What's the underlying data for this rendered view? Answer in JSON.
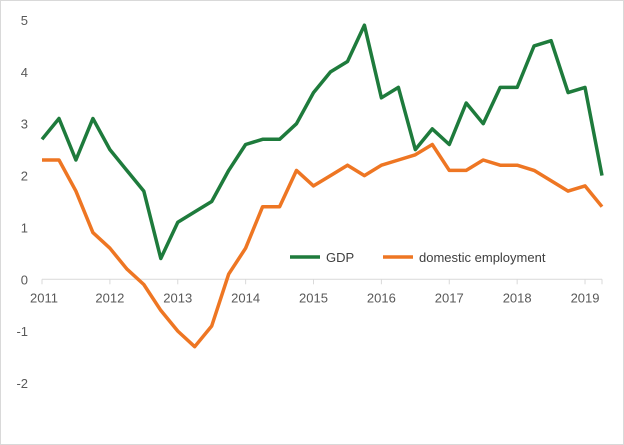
{
  "chart_data": {
    "type": "line",
    "title": "",
    "xlabel": "",
    "ylabel": "",
    "ylim": [
      -2,
      5
    ],
    "xlim": [
      2011.0,
      2019.25
    ],
    "grid": false,
    "legend_position": "center-right",
    "y_ticks": [
      "5",
      "4",
      "3",
      "2",
      "1",
      "0",
      "-1",
      "-2"
    ],
    "x_ticks": [
      "2011",
      "2012",
      "2013",
      "2014",
      "2015",
      "2016",
      "2017",
      "2018",
      "2019"
    ],
    "x": [
      2011.0,
      2011.25,
      2011.5,
      2011.75,
      2012.0,
      2012.25,
      2012.5,
      2012.75,
      2013.0,
      2013.25,
      2013.5,
      2013.75,
      2014.0,
      2014.25,
      2014.5,
      2014.75,
      2015.0,
      2015.25,
      2015.5,
      2015.75,
      2016.0,
      2016.25,
      2016.5,
      2016.75,
      2017.0,
      2017.25,
      2017.5,
      2017.75,
      2018.0,
      2018.25,
      2018.5,
      2018.75,
      2019.0,
      2019.25
    ],
    "series": [
      {
        "name": "GDP",
        "color": "#1e7b3c",
        "values": [
          2.7,
          3.1,
          2.3,
          3.1,
          2.5,
          2.1,
          1.7,
          0.4,
          1.1,
          1.3,
          1.5,
          2.1,
          2.6,
          2.7,
          2.7,
          3.0,
          3.6,
          4.0,
          4.2,
          4.9,
          3.5,
          3.7,
          2.5,
          2.9,
          2.6,
          3.4,
          3.0,
          3.7,
          3.7,
          4.5,
          4.6,
          3.6,
          3.7,
          2.0
        ]
      },
      {
        "name": "domestic employment",
        "color": "#ee7623",
        "values": [
          2.3,
          2.3,
          1.7,
          0.9,
          0.6,
          0.2,
          -0.1,
          -0.6,
          -1.0,
          -1.3,
          -0.9,
          0.1,
          0.6,
          1.4,
          1.4,
          2.1,
          1.8,
          2.0,
          2.2,
          2.0,
          2.2,
          2.3,
          2.4,
          2.6,
          2.1,
          2.1,
          2.3,
          2.2,
          2.2,
          2.1,
          1.9,
          1.7,
          1.8,
          1.4
        ]
      }
    ]
  }
}
